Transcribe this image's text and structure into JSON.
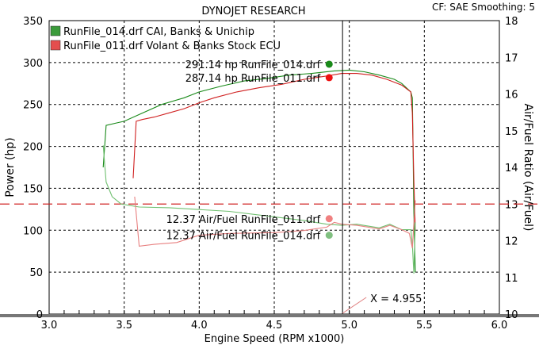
{
  "chart_data": {
    "type": "line",
    "title": "DYNOJET RESEARCH",
    "info": "CF: SAE  Smoothing: 5",
    "xlabel": "Engine Speed (RPM x1000)",
    "ylabel": "Power (hp)",
    "y2label": "Air/Fuel Ratio (Air/Fuel)",
    "xlim": [
      3.0,
      6.0
    ],
    "ylim": [
      0,
      350
    ],
    "y2lim": [
      10,
      18
    ],
    "xticks": [
      "3.0",
      "3.5",
      "4.0",
      "4.5",
      "5.0",
      "5.5",
      "6.0"
    ],
    "yticks": [
      "0",
      "50",
      "100",
      "150",
      "200",
      "250",
      "300",
      "350"
    ],
    "y2ticks": [
      "10",
      "11",
      "12",
      "13",
      "14",
      "15",
      "16",
      "17",
      "18"
    ],
    "grid": true,
    "reference_afr": 13.0,
    "cursor_x": 4.955,
    "cursor_label": "X = 4.955",
    "legend": [
      {
        "label": "RunFile_014.drf CAI, Banks & Unichip",
        "color": "#1a8a1a"
      },
      {
        "label": "RunFile_011.drf Volant & Banks Stock ECU",
        "color": "#e03030"
      }
    ],
    "series": [
      {
        "name": "RunFile_014 Power",
        "axis": "left",
        "color": "#1a8a1a",
        "x": [
          3.36,
          3.38,
          3.45,
          3.5,
          3.6,
          3.75,
          3.9,
          4.0,
          4.15,
          4.3,
          4.45,
          4.6,
          4.75,
          4.9,
          5.0,
          5.1,
          5.2,
          5.3,
          5.35,
          5.41,
          5.42,
          5.425,
          5.43,
          5.44
        ],
        "y": [
          175,
          225,
          228,
          230,
          238,
          250,
          258,
          265,
          272,
          278,
          281,
          285,
          287,
          290,
          291,
          289,
          285,
          280,
          275,
          265,
          258,
          200,
          120,
          50
        ]
      },
      {
        "name": "RunFile_011 Power",
        "axis": "left",
        "color": "#d02020",
        "x": [
          3.56,
          3.58,
          3.62,
          3.7,
          3.8,
          3.9,
          4.0,
          4.1,
          4.25,
          4.4,
          4.55,
          4.7,
          4.85,
          4.95,
          5.05,
          5.15,
          5.25,
          5.35,
          5.41,
          5.42,
          5.43,
          5.44
        ],
        "y": [
          162,
          230,
          232,
          235,
          240,
          245,
          252,
          258,
          265,
          270,
          274,
          280,
          284,
          287,
          287,
          285,
          280,
          273,
          265,
          240,
          160,
          100
        ]
      },
      {
        "name": "RunFile_014 AFR",
        "axis": "right",
        "color": "#70c070",
        "x": [
          3.36,
          3.38,
          3.42,
          3.48,
          3.6,
          3.8,
          4.0,
          4.2,
          4.5,
          4.7,
          4.85,
          4.95,
          5.05,
          5.2,
          5.27,
          5.35,
          5.41,
          5.42,
          5.43,
          5.44
        ],
        "y": [
          14.6,
          13.6,
          13.2,
          13.0,
          12.92,
          12.9,
          12.85,
          12.8,
          12.65,
          12.55,
          12.45,
          12.42,
          12.45,
          12.35,
          12.45,
          12.3,
          12.3,
          11.9,
          11.1,
          12.5
        ]
      },
      {
        "name": "RunFile_011 AFR",
        "axis": "right",
        "color": "#e88080",
        "x": [
          3.57,
          3.59,
          3.6,
          3.7,
          3.85,
          4.0,
          4.2,
          4.5,
          4.7,
          4.85,
          4.9,
          4.95,
          5.05,
          5.2,
          5.27,
          5.35,
          5.4,
          5.42,
          5.44
        ],
        "y": [
          13.2,
          12.3,
          11.85,
          11.9,
          11.95,
          12.15,
          12.2,
          12.22,
          12.28,
          12.37,
          12.5,
          12.45,
          12.42,
          12.32,
          12.42,
          12.3,
          12.2,
          11.8,
          13.1
        ]
      }
    ],
    "annotations": [
      {
        "text": "291.14 hp RunFile_014.drf",
        "x": 4.85,
        "y": 298,
        "axis": "left",
        "color": "#1a8a1a"
      },
      {
        "text": "287.14 hp RunFile_011.drf",
        "x": 4.85,
        "y": 282,
        "axis": "left",
        "color": "#ee1111"
      },
      {
        "text": "12.37 Air/Fuel RunFile_011.drf",
        "x": 4.85,
        "y": 12.6,
        "axis": "right",
        "color": "#f08080"
      },
      {
        "text": "12.37 Air/Fuel RunFile_014.drf",
        "x": 4.85,
        "y": 12.15,
        "axis": "right",
        "color": "#80c080"
      }
    ]
  }
}
